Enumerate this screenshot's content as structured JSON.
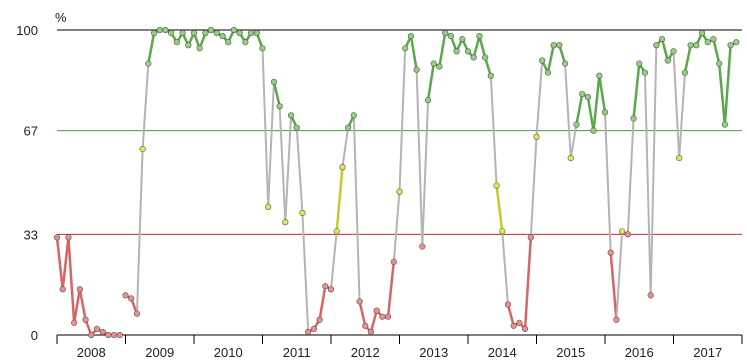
{
  "chart_data": {
    "type": "line",
    "title": "",
    "xlabel": "",
    "ylabel": "%",
    "ylim": [
      0,
      100
    ],
    "xlim": [
      2008.0,
      2018.0
    ],
    "y_ticks": [
      0,
      33,
      67,
      100
    ],
    "x_tick_labels": [
      "2008",
      "2009",
      "2010",
      "2011",
      "2012",
      "2013",
      "2014",
      "2015",
      "2016",
      "2017"
    ],
    "thresholds": [
      {
        "value": 100,
        "color": "#000000"
      },
      {
        "value": 67,
        "color": "#4c9a3c"
      },
      {
        "value": 33,
        "color": "#b03030"
      }
    ],
    "colors": {
      "high_line": "#5aa84a",
      "high_point": "#8fd27a",
      "mid_line": "#c8c832",
      "mid_point": "#e6e650",
      "low_line": "#d96464",
      "low_point": "#f08c8c",
      "transition_line": "#b4b4b4"
    },
    "series": [
      {
        "x": [
          2008.0,
          2008.083,
          2008.167,
          2008.25,
          2008.333,
          2008.417,
          2008.5,
          2008.583,
          2008.667,
          2008.75,
          2008.833,
          2008.917,
          2009.0,
          2009.083,
          2009.167,
          2009.25,
          2009.333,
          2009.417,
          2009.5,
          2009.583,
          2009.667,
          2009.75,
          2009.833,
          2009.917,
          2010.0,
          2010.083,
          2010.167,
          2010.25,
          2010.333,
          2010.417,
          2010.5,
          2010.583,
          2010.667,
          2010.75,
          2010.833,
          2010.917,
          2011.0,
          2011.083,
          2011.167,
          2011.25,
          2011.333,
          2011.417,
          2011.5,
          2011.583,
          2011.667,
          2011.75,
          2011.833,
          2011.917,
          2012.0,
          2012.083,
          2012.167,
          2012.25,
          2012.333,
          2012.417,
          2012.5,
          2012.583,
          2012.667,
          2012.75,
          2012.833,
          2012.917,
          2013.0,
          2013.083,
          2013.167,
          2013.25,
          2013.333,
          2013.417,
          2013.5,
          2013.583,
          2013.667,
          2013.75,
          2013.833,
          2013.917,
          2014.0,
          2014.083,
          2014.167,
          2014.25,
          2014.333,
          2014.417,
          2014.5,
          2014.583,
          2014.667,
          2014.75,
          2014.833,
          2014.917,
          2015.0,
          2015.083,
          2015.167,
          2015.25,
          2015.333,
          2015.417,
          2015.5,
          2015.583,
          2015.667,
          2015.75,
          2015.833,
          2015.917,
          2016.0,
          2016.083,
          2016.167,
          2016.25,
          2016.333,
          2016.417,
          2016.5,
          2016.583,
          2016.667,
          2016.75,
          2016.833,
          2016.917,
          2017.0,
          2017.083,
          2017.167,
          2017.25,
          2017.333,
          2017.417,
          2017.5,
          2017.583,
          2017.667,
          2017.75,
          2017.833,
          2017.917
        ],
        "y": [
          32,
          15,
          32,
          4,
          15,
          5,
          0,
          2,
          1,
          0,
          0,
          0,
          13,
          12,
          7,
          61,
          89,
          99,
          100,
          100,
          99,
          96,
          99,
          95,
          99,
          94,
          99,
          100,
          99,
          98,
          96,
          100,
          99,
          96,
          99,
          99,
          94,
          42,
          83,
          75,
          37,
          72,
          68,
          40,
          1,
          2,
          5,
          16,
          15,
          34,
          55,
          68,
          72,
          11,
          3,
          1,
          8,
          6,
          6,
          24,
          47,
          94,
          98,
          87,
          29,
          77,
          89,
          88,
          99,
          98,
          93,
          97,
          93,
          91,
          98,
          91,
          85,
          49,
          34,
          10,
          3,
          4,
          2,
          32,
          65,
          90,
          86,
          95,
          95,
          89,
          58,
          69,
          79,
          78,
          67,
          85,
          73,
          27,
          5,
          34,
          33,
          71,
          89,
          86,
          13,
          95,
          97,
          90,
          93,
          58,
          86,
          95,
          95,
          99,
          96,
          97,
          89,
          69,
          95,
          96
        ],
        "hole_after_index": [
          11
        ]
      }
    ]
  }
}
